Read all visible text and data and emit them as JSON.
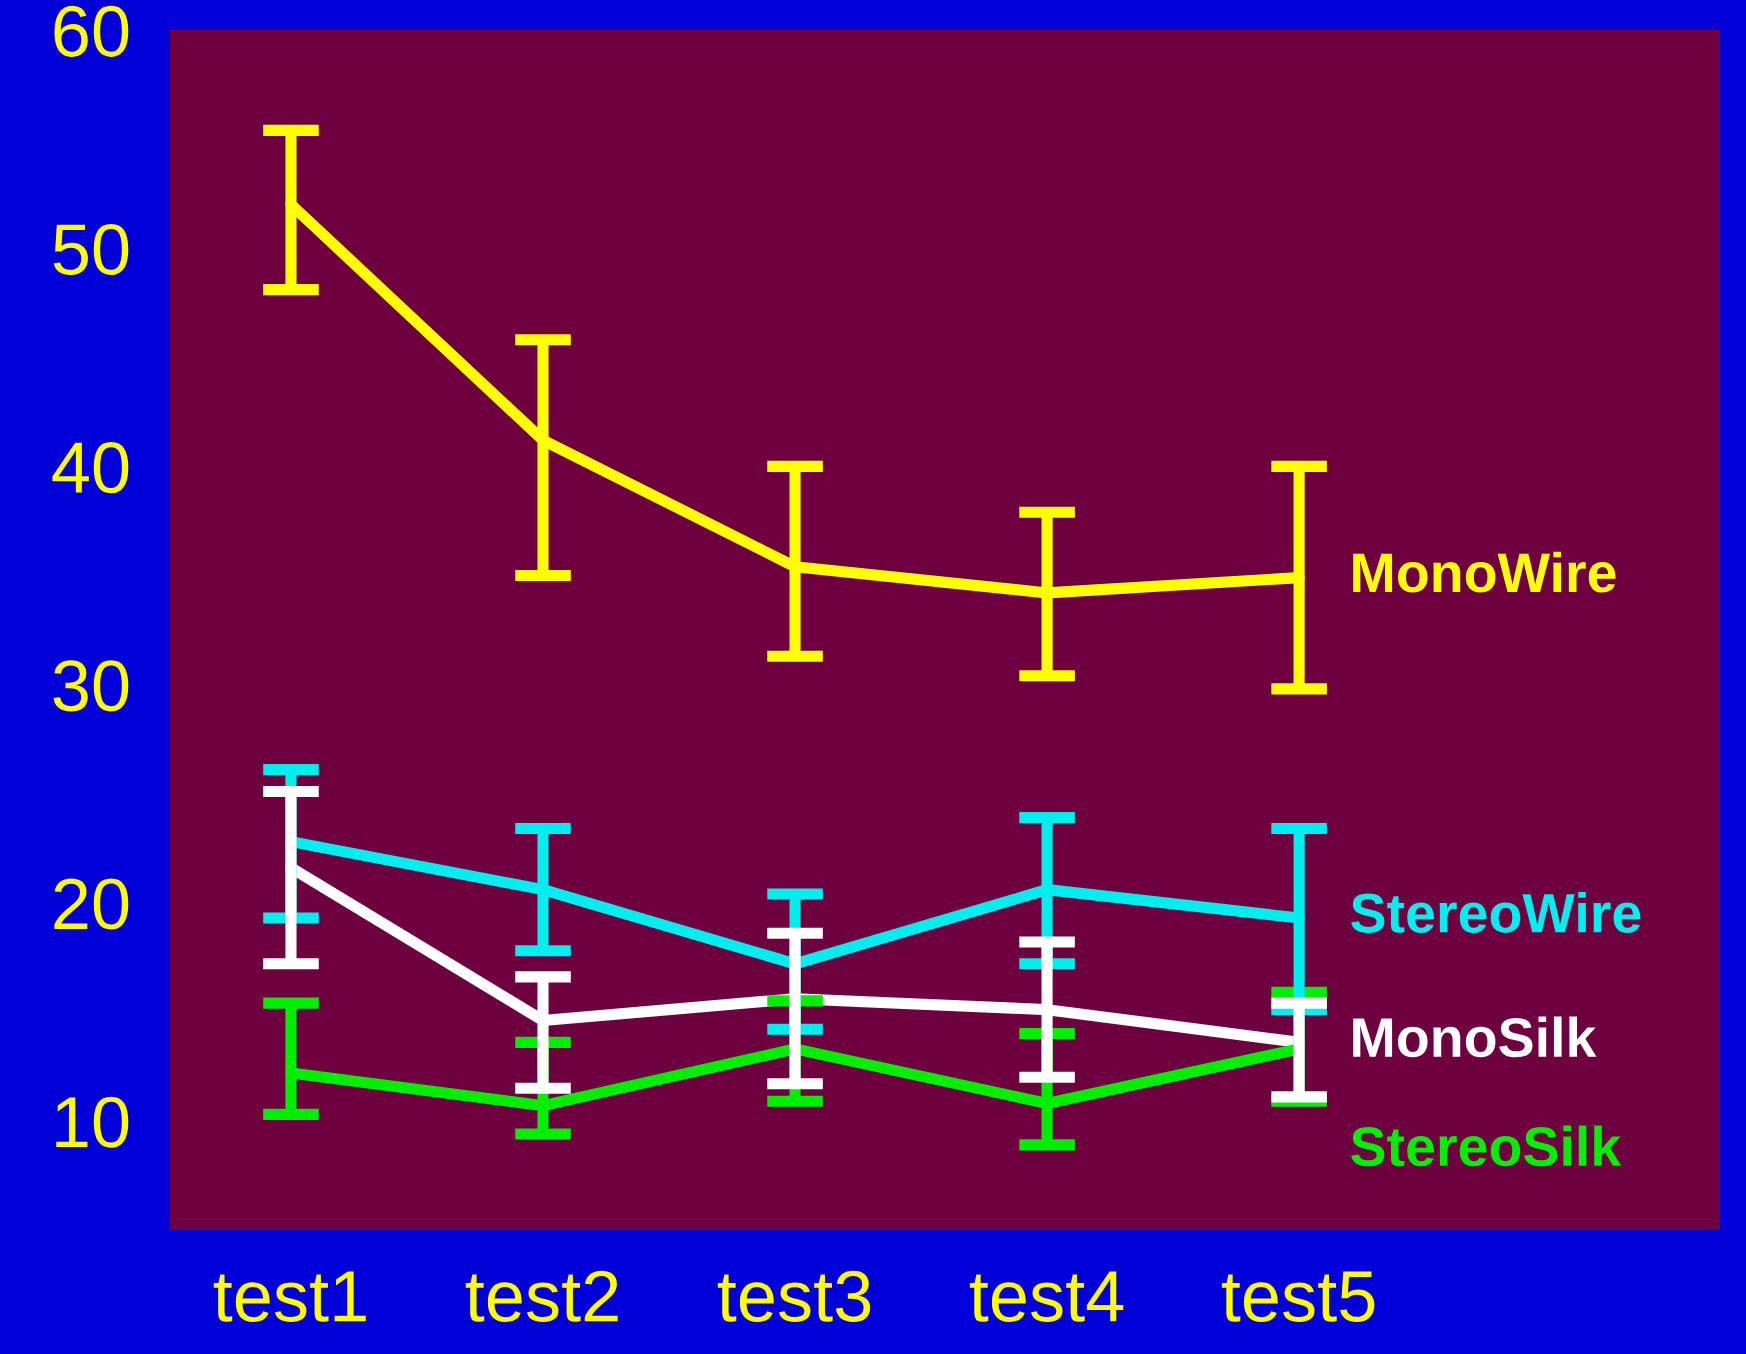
{
  "chart_data": {
    "type": "line",
    "categories": [
      "test1",
      "test2",
      "test3",
      "test4",
      "test5"
    ],
    "series": [
      {
        "name": "MonoWire",
        "color": "#ffff00",
        "values": [
          52.0,
          41.2,
          35.4,
          34.2,
          34.9
        ],
        "errors": [
          [
            48.1,
            55.4
          ],
          [
            35.0,
            45.8
          ],
          [
            31.3,
            40.0
          ],
          [
            30.4,
            37.9
          ],
          [
            29.8,
            40.0
          ]
        ]
      },
      {
        "name": "MonoSilk",
        "color": "#ffffff",
        "values": [
          21.6,
          14.6,
          15.6,
          15.1,
          13.6
        ],
        "errors": [
          [
            17.2,
            25.1
          ],
          [
            11.5,
            16.6
          ],
          [
            11.7,
            18.6
          ],
          [
            12.0,
            18.2
          ],
          [
            11.1,
            15.4
          ]
        ]
      },
      {
        "name": "StereoWire",
        "color": "#00eeee",
        "values": [
          22.8,
          20.6,
          17.2,
          20.6,
          19.3
        ],
        "errors": [
          [
            19.3,
            26.1
          ],
          [
            17.8,
            23.4
          ],
          [
            14.2,
            20.4
          ],
          [
            17.2,
            23.9
          ],
          [
            15.1,
            23.4
          ]
        ]
      },
      {
        "name": "StereoSilk",
        "color": "#00ee00",
        "values": [
          12.2,
          10.7,
          13.3,
          10.8,
          13.3
        ],
        "errors": [
          [
            10.3,
            15.4
          ],
          [
            9.4,
            13.6
          ],
          [
            10.9,
            15.5
          ],
          [
            8.9,
            14.0
          ],
          [
            10.9,
            15.9
          ]
        ]
      }
    ],
    "ylim": [
      5,
      60
    ],
    "yticks": [
      10,
      20,
      30,
      40,
      50,
      60
    ],
    "grid": false,
    "legend": false,
    "marker": "none",
    "line_style": "solid"
  }
}
